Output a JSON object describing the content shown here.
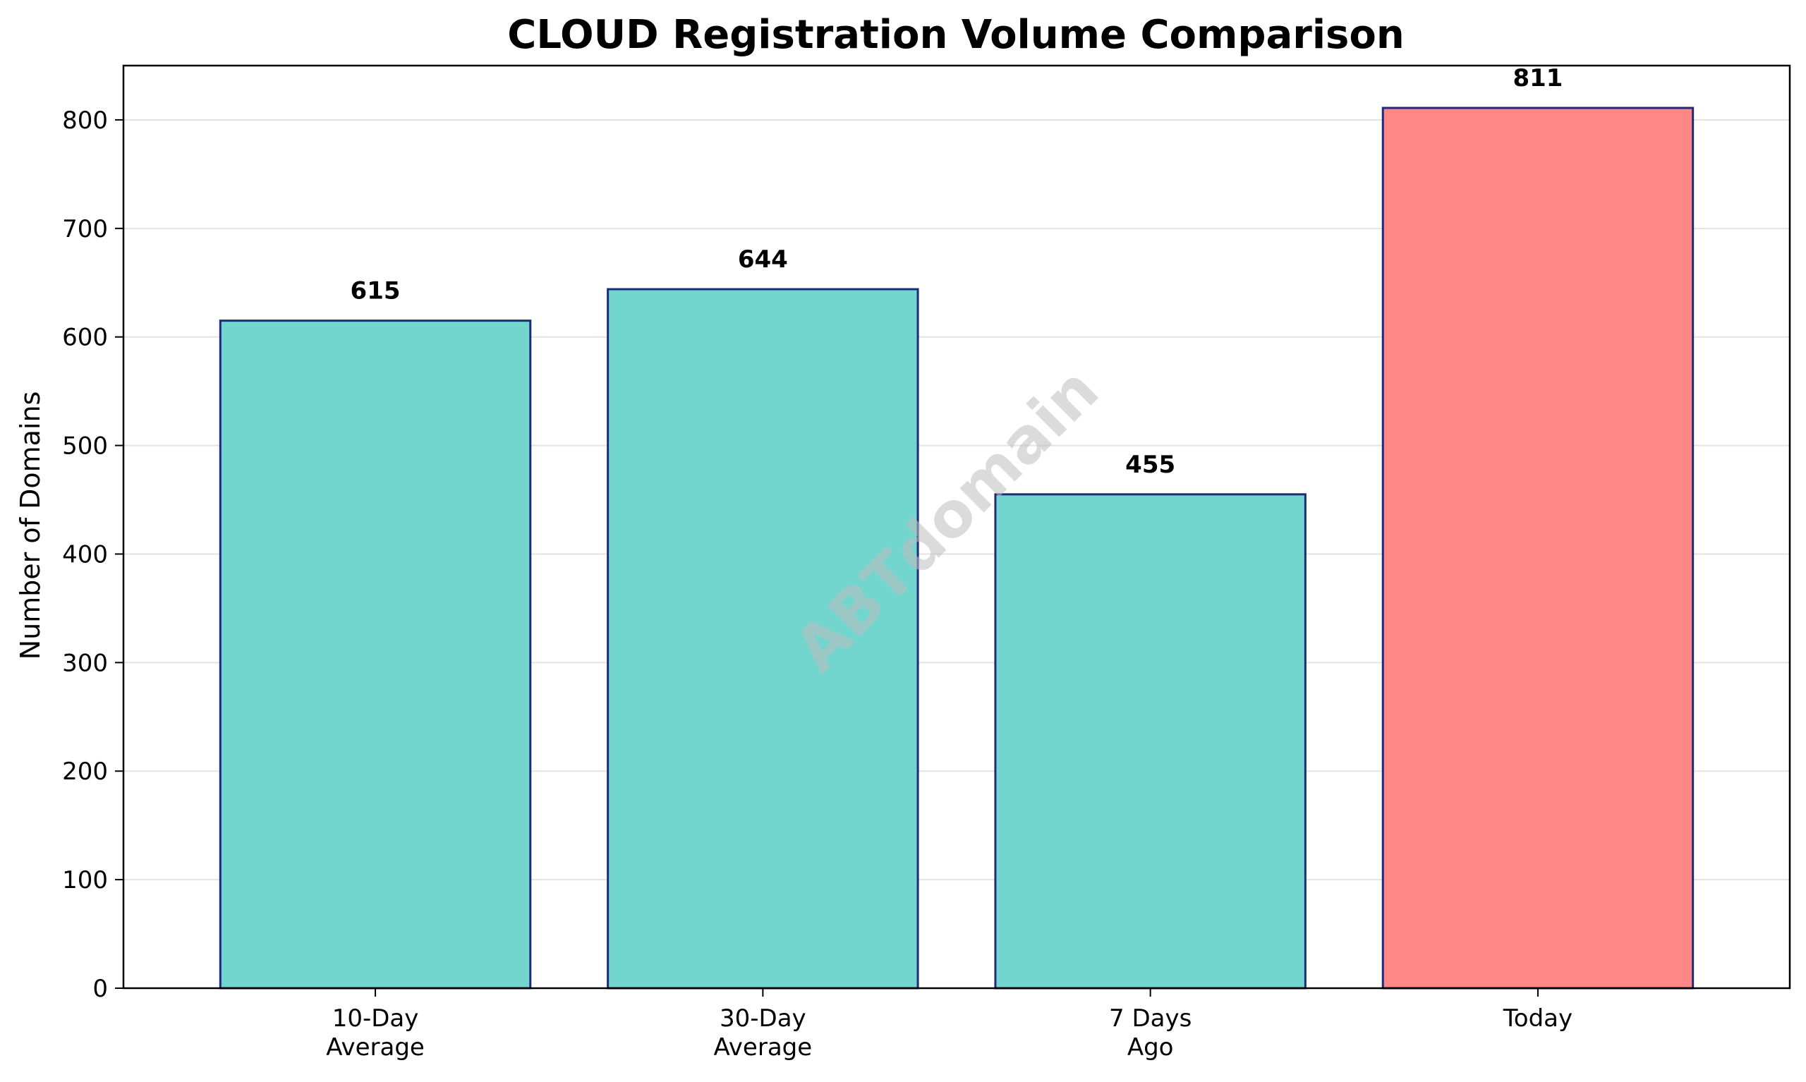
{
  "chart_data": {
    "type": "bar",
    "title": "CLOUD Registration Volume Comparison",
    "xlabel": "",
    "ylabel": "Number of Domains",
    "categories": [
      [
        "10-Day",
        "Average"
      ],
      [
        "30-Day",
        "Average"
      ],
      [
        "7 Days",
        "Ago"
      ],
      [
        "Today"
      ]
    ],
    "values": [
      615,
      644,
      455,
      811
    ],
    "bar_colors": [
      "#72d5ce",
      "#72d5ce",
      "#72d5ce",
      "#ff8886"
    ],
    "bar_edge_color": "#1f2a7a",
    "ylim": [
      0,
      850
    ],
    "yticks": [
      0,
      100,
      200,
      300,
      400,
      500,
      600,
      700,
      800
    ],
    "grid": "y",
    "legend": "none",
    "watermark": "ABTdomain"
  }
}
